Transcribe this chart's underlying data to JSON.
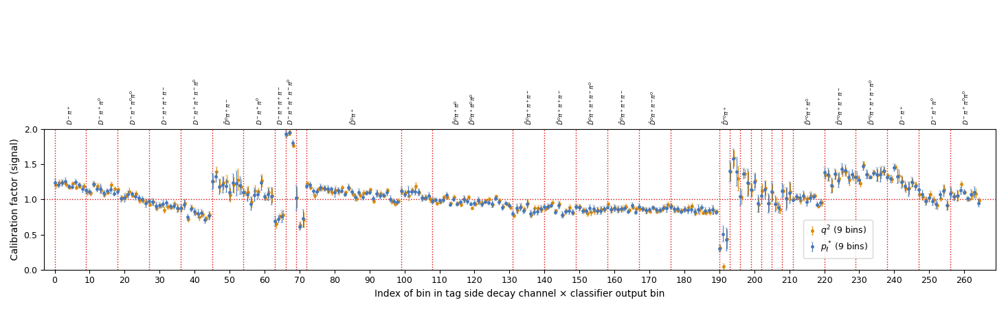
{
  "xlabel": "Index of bin in tag side decay channel × classifier output bin",
  "ylabel": "Calibration factor (signal)",
  "ylim": [
    0.0,
    2.0
  ],
  "xlim": [
    -3,
    269
  ],
  "yticks": [
    0.0,
    0.5,
    1.0,
    1.5,
    2.0
  ],
  "xticks": [
    0,
    10,
    20,
    30,
    40,
    50,
    60,
    70,
    80,
    90,
    100,
    110,
    120,
    130,
    140,
    150,
    160,
    170,
    180,
    190,
    200,
    210,
    220,
    230,
    240,
    250,
    260
  ],
  "hline_color": "#dd0000",
  "vline_color": "#dd0000",
  "vlines": [
    0,
    9,
    18,
    27,
    36,
    45,
    54,
    63,
    66,
    69,
    72,
    99,
    108,
    131,
    140,
    149,
    158,
    167,
    176,
    190,
    193,
    196,
    199,
    202,
    205,
    208,
    211,
    220,
    229,
    238,
    247,
    256
  ],
  "blue_color": "#4477bb",
  "orange_color": "#dd8800",
  "figsize": [
    14.64,
    4.5
  ],
  "dpi": 100,
  "legend_labels": [
    "$p_\\ell^*$ (9 bins)",
    "$q^2$ (9 bins)"
  ]
}
